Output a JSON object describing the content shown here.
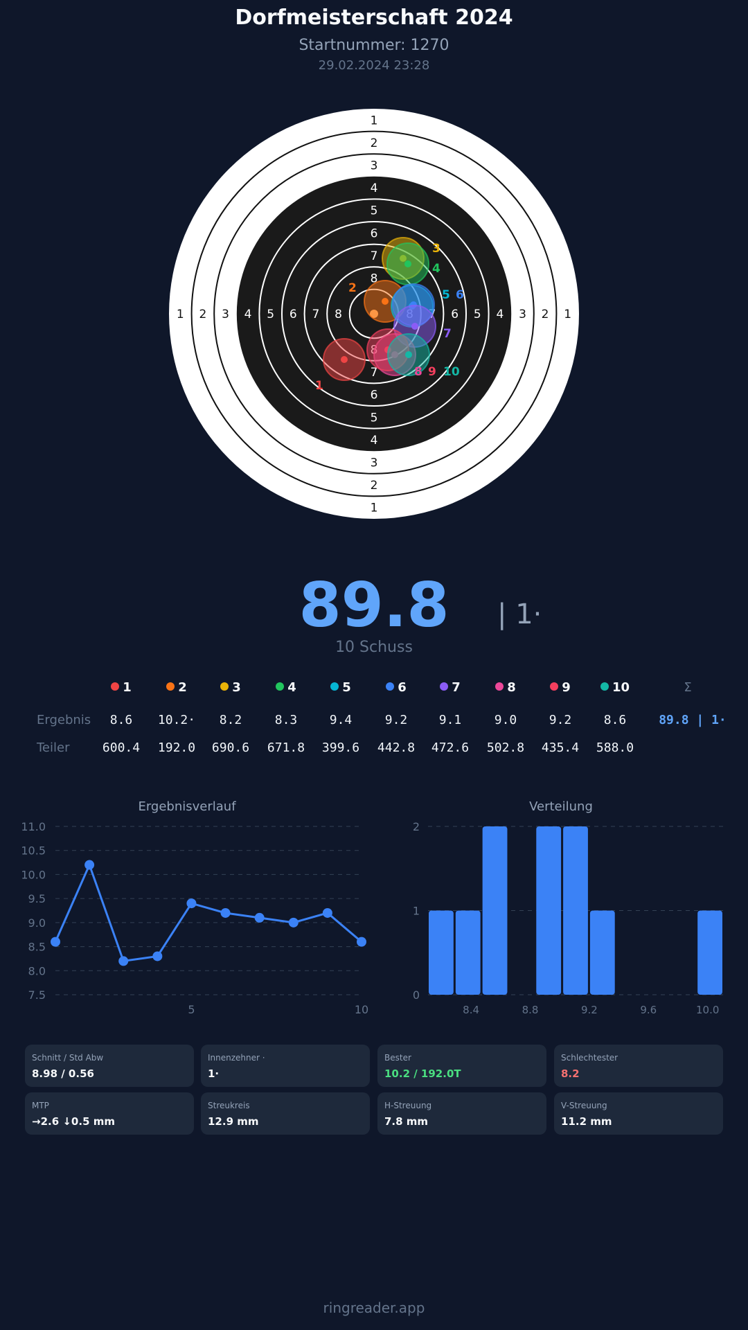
{
  "header": {
    "title": "Dorfmeisterschaft 2024",
    "start_number": "Startnummer: 1270",
    "datetime": "29.02.2024 23:28"
  },
  "target": {
    "ring_labels": [
      "1",
      "2",
      "3",
      "4",
      "5",
      "6",
      "7",
      "8"
    ],
    "shots": [
      {
        "n": "1",
        "color": "#ef4444"
      },
      {
        "n": "2",
        "color": "#f97316"
      },
      {
        "n": "3",
        "color": "#eab308"
      },
      {
        "n": "4",
        "color": "#22c55e"
      },
      {
        "n": "5",
        "color": "#06b6d4"
      },
      {
        "n": "6",
        "color": "#3b82f6"
      },
      {
        "n": "7",
        "color": "#8b5cf6"
      },
      {
        "n": "8",
        "color": "#ec4899"
      },
      {
        "n": "9",
        "color": "#f43f5e"
      },
      {
        "n": "10",
        "color": "#14b8a6"
      }
    ]
  },
  "summary": {
    "total": "89.8",
    "inner_tens": "| 1·",
    "shots": "10 Schuss"
  },
  "table": {
    "sum_symbol": "Σ",
    "result_label": "Ergebnis",
    "teiler_label": "Teiler",
    "results": [
      "8.6",
      "10.2·",
      "8.2",
      "8.3",
      "9.4",
      "9.2",
      "9.1",
      "9.0",
      "9.2",
      "8.6"
    ],
    "total": "89.8 | 1·",
    "teiler": [
      "600.4",
      "192.0",
      "690.6",
      "671.8",
      "399.6",
      "442.8",
      "472.6",
      "502.8",
      "435.4",
      "588.0"
    ]
  },
  "chart_data": [
    {
      "type": "line",
      "title": "Ergebnisverlauf",
      "x": [
        1,
        2,
        3,
        4,
        5,
        6,
        7,
        8,
        9,
        10
      ],
      "values": [
        8.6,
        10.2,
        8.2,
        8.3,
        9.4,
        9.2,
        9.1,
        9.0,
        9.2,
        8.6
      ],
      "ylim": [
        7.5,
        11.0
      ],
      "yticks": [
        "11.0",
        "10.5",
        "10.0",
        "9.5",
        "9.0",
        "8.5",
        "8.0",
        "7.5"
      ],
      "xticks": [
        "5",
        "10"
      ],
      "xlim": [
        1,
        10
      ],
      "grid": true,
      "color": "#3b82f6"
    },
    {
      "type": "bar",
      "title": "Verteilung",
      "values": [
        1,
        1,
        2,
        0,
        2,
        2,
        1,
        0,
        0,
        0,
        1
      ],
      "xlim": [
        8.2,
        10.2
      ],
      "xticks": [
        "8.4",
        "8.8",
        "9.2",
        "9.6",
        "10.0"
      ],
      "yticks": [
        "2",
        "1",
        "0"
      ],
      "ylim": [
        0,
        2
      ],
      "grid": true,
      "color": "#3b82f6"
    }
  ],
  "stats": [
    {
      "label": "Schnitt / Std Abw",
      "value": "8.98 / 0.56",
      "color": "#f8fafc"
    },
    {
      "label": "Innenzehner ·",
      "value": "1·",
      "color": "#f8fafc"
    },
    {
      "label": "Bester",
      "value": "10.2 / 192.0T",
      "color": "#4ade80"
    },
    {
      "label": "Schlechtester",
      "value": "8.2",
      "color": "#f87171"
    },
    {
      "label": "MTP",
      "value": "→2.6 ↓0.5 mm",
      "color": "#f8fafc"
    },
    {
      "label": "Streukreis",
      "value": "12.9 mm",
      "color": "#f8fafc"
    },
    {
      "label": "H-Streuung",
      "value": "7.8 mm",
      "color": "#f8fafc"
    },
    {
      "label": "V-Streuung",
      "value": "11.2 mm",
      "color": "#f8fafc"
    }
  ],
  "footer": "ringreader.app"
}
